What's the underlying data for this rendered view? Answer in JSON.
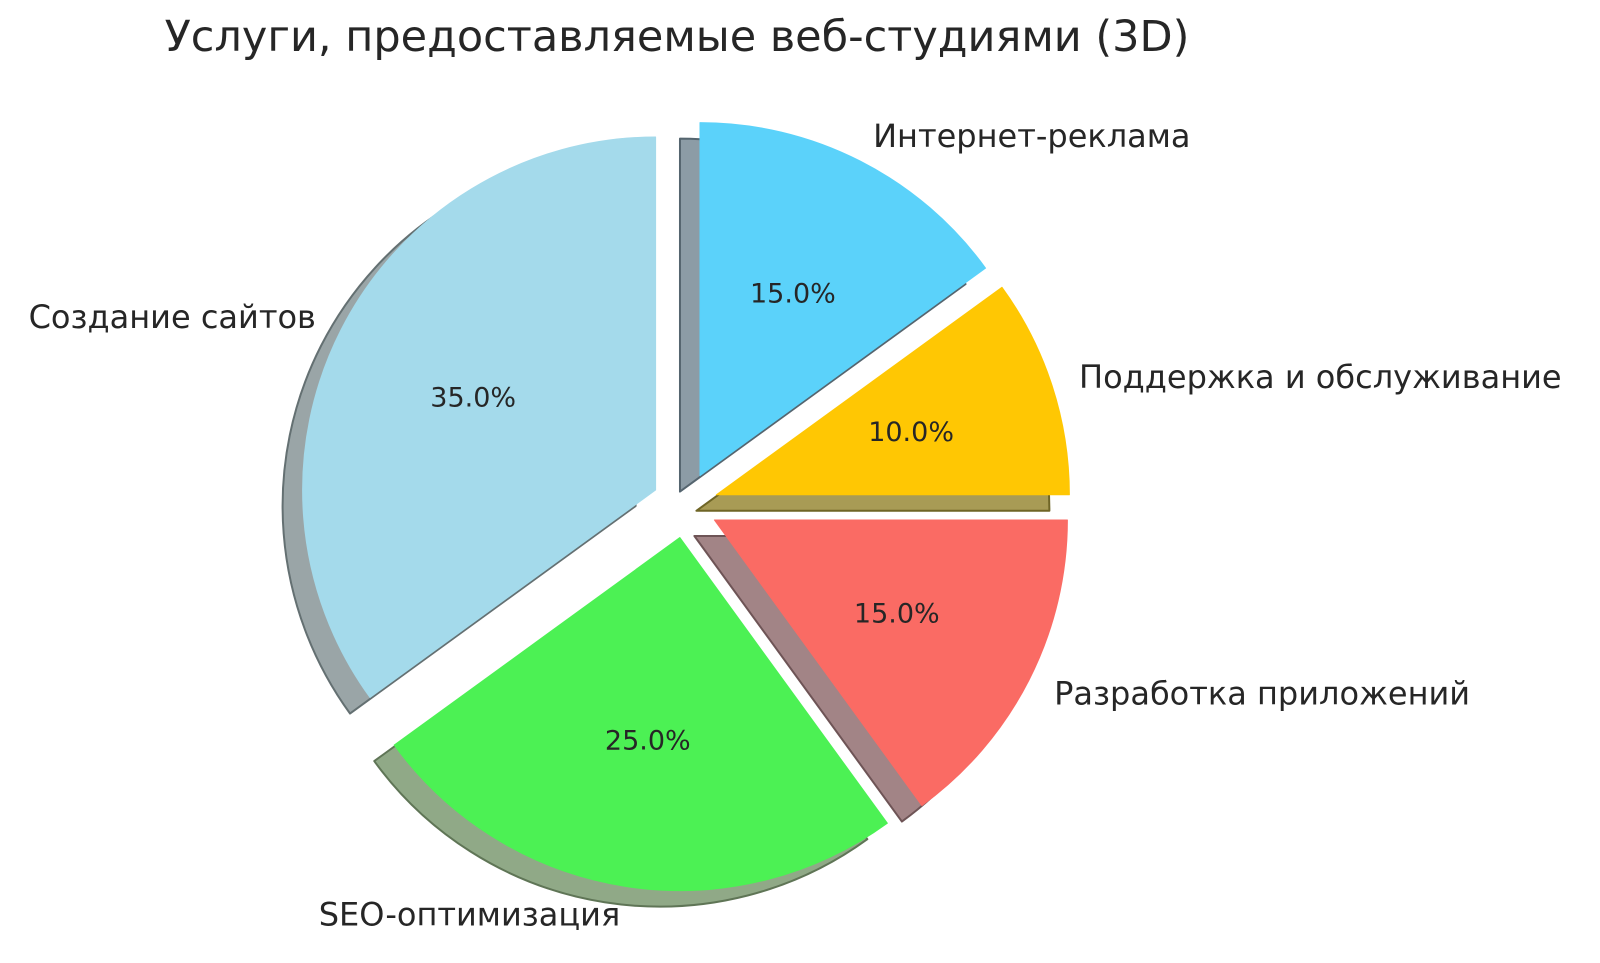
{
  "chart_data": {
    "type": "pie",
    "title": "Услуги, предоставляемые веб-студиями (3D)",
    "start_angle": 90,
    "direction": "clockwise",
    "legend": "none",
    "grid": false,
    "effect": "exploded-with-shadow",
    "background": "#ffffff",
    "text_color": "#262626",
    "slices": [
      {
        "label": "Интернет-реклама",
        "value": 15.0,
        "pct_label": "15.0%",
        "color": "#5BD2FA",
        "shadow_color": "#8C9CA6",
        "shadow_edge": "#55656F"
      },
      {
        "label": "Поддержка и обслуживание",
        "value": 10.0,
        "pct_label": "10.0%",
        "color": "#FFC703",
        "shadow_color": "#A89B55",
        "shadow_edge": "#6F6526"
      },
      {
        "label": "Разработка приложений",
        "value": 15.0,
        "pct_label": "15.0%",
        "color": "#FA6B64",
        "shadow_color": "#A28486",
        "shadow_edge": "#6E5456"
      },
      {
        "label": "SEO-оптимизация",
        "value": 25.0,
        "pct_label": "25.0%",
        "color": "#4CF154",
        "shadow_color": "#90A987",
        "shadow_edge": "#5F7556"
      },
      {
        "label": "Создание сайтов",
        "value": 35.0,
        "pct_label": "35.0%",
        "color": "#A4DAEB",
        "shadow_color": "#9AA5A7",
        "shadow_edge": "#647072"
      }
    ]
  }
}
